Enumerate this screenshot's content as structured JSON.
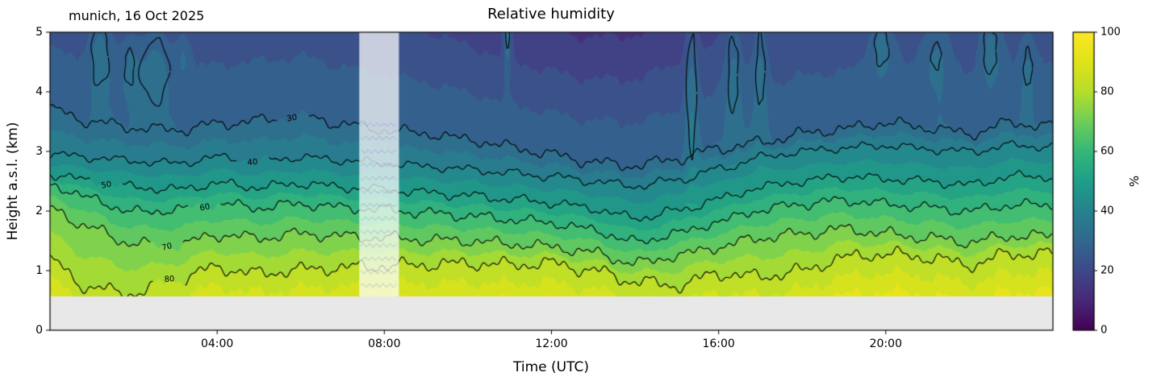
{
  "colors": {
    "background": "#ffffff",
    "no_data": "#e8e8e8",
    "contour_line": "#000000",
    "gap_overlay": "rgba(255,255,255,0.72)"
  },
  "chart_data": {
    "type": "filled_contour",
    "title": "Relative humidity",
    "annotation": "munich, 16 Oct 2025",
    "xlabel": "Time (UTC)",
    "ylabel": "Height a.s.l. (km)",
    "colorbar": {
      "label": "%",
      "min": 0,
      "max": 100,
      "ticks": [
        0,
        20,
        40,
        60,
        80,
        100
      ],
      "colormap": "viridis"
    },
    "x_axis": {
      "min_hours": 0,
      "max_hours": 24,
      "ticks": [
        {
          "t": 4,
          "label": "04:00"
        },
        {
          "t": 8,
          "label": "08:00"
        },
        {
          "t": 12,
          "label": "12:00"
        },
        {
          "t": 16,
          "label": "16:00"
        },
        {
          "t": 20,
          "label": "20:00"
        }
      ]
    },
    "y_axis": {
      "min": 0,
      "max": 5,
      "ticks": [
        0,
        1,
        2,
        3,
        4,
        5
      ]
    },
    "ground_level_km": 0.57,
    "data_gap": {
      "t_start": 7.4,
      "t_end": 8.35
    },
    "contour_levels": [
      {
        "value": 80,
        "label_t": 2.85,
        "label_rot": -4,
        "wiggle_amp": 0.07,
        "phase": 0.7,
        "heights_km": [
          1.15,
          0.7,
          0.62,
          0.85,
          1.05,
          0.95,
          1.02,
          1.05,
          1.08,
          1.1,
          1.12,
          1.1,
          1.12,
          1.0,
          0.82,
          0.75,
          0.95,
          0.9,
          1.0,
          1.22,
          1.28,
          1.22,
          1.1,
          1.28,
          1.28
        ]
      },
      {
        "value": 70,
        "label_t": 2.8,
        "label_rot": -14,
        "wiggle_amp": 0.06,
        "phase": 1.9,
        "heights_km": [
          2.05,
          1.7,
          1.45,
          1.42,
          1.6,
          1.55,
          1.62,
          1.58,
          1.55,
          1.52,
          1.5,
          1.45,
          1.4,
          1.3,
          1.12,
          1.25,
          1.4,
          1.55,
          1.62,
          1.7,
          1.62,
          1.55,
          1.48,
          1.58,
          1.58
        ]
      },
      {
        "value": 60,
        "label_t": 3.7,
        "label_rot": -12,
        "wiggle_amp": 0.055,
        "phase": 3.1,
        "heights_km": [
          2.45,
          2.2,
          1.98,
          2.02,
          2.12,
          2.06,
          2.12,
          2.06,
          2.02,
          1.97,
          1.92,
          1.86,
          1.8,
          1.68,
          1.48,
          1.62,
          1.82,
          2.02,
          2.12,
          2.18,
          2.12,
          2.06,
          2.0,
          2.1,
          2.1
        ]
      },
      {
        "value": 50,
        "label_t": 1.35,
        "label_rot": -10,
        "wiggle_amp": 0.05,
        "phase": 4.3,
        "heights_km": [
          2.62,
          2.5,
          2.4,
          2.36,
          2.46,
          2.4,
          2.46,
          2.4,
          2.36,
          2.31,
          2.26,
          2.2,
          2.14,
          2.04,
          1.88,
          2.0,
          2.2,
          2.4,
          2.5,
          2.58,
          2.54,
          2.5,
          2.44,
          2.58,
          2.58
        ]
      },
      {
        "value": 40,
        "label_t": 4.85,
        "label_rot": -6,
        "wiggle_amp": 0.045,
        "phase": 5.5,
        "heights_km": [
          2.95,
          2.9,
          2.84,
          2.8,
          2.9,
          2.85,
          2.9,
          2.85,
          2.8,
          2.75,
          2.7,
          2.64,
          2.58,
          2.5,
          2.42,
          2.52,
          2.7,
          2.9,
          3.0,
          3.06,
          3.1,
          3.04,
          3.0,
          3.1,
          3.08
        ]
      },
      {
        "value": 30,
        "label_t": 5.8,
        "label_rot": -10,
        "wiggle_amp": 0.06,
        "phase": 0.3,
        "heights_km": [
          3.7,
          3.5,
          3.4,
          3.36,
          3.46,
          3.52,
          3.6,
          3.46,
          3.36,
          3.3,
          3.2,
          3.08,
          2.95,
          2.82,
          2.76,
          2.88,
          3.05,
          3.15,
          3.3,
          3.38,
          3.48,
          3.4,
          3.3,
          3.48,
          3.42
        ]
      }
    ],
    "upper_features": [
      {
        "t": 1.2,
        "h": 4.6,
        "amp": 9,
        "rt": 0.2,
        "rh": 0.5
      },
      {
        "t": 1.9,
        "h": 4.4,
        "amp": 7,
        "rt": 0.15,
        "rh": 0.4
      },
      {
        "t": 2.5,
        "h": 4.35,
        "amp": 8,
        "rt": 0.3,
        "rh": 0.5
      },
      {
        "t": 3.2,
        "h": 4.6,
        "amp": 6.5,
        "rt": 0.12,
        "rh": 0.3
      },
      {
        "t": 10.95,
        "h": 4.95,
        "amp": 14,
        "rt": 0.07,
        "rh": 0.45
      },
      {
        "t": 15.35,
        "h": 4.0,
        "amp": 10,
        "rt": 0.12,
        "rh": 1.1
      },
      {
        "t": 16.35,
        "h": 4.3,
        "amp": 9,
        "rt": 0.18,
        "rh": 0.9
      },
      {
        "t": 17.0,
        "h": 4.35,
        "amp": 8,
        "rt": 0.14,
        "rh": 0.85
      },
      {
        "t": 19.9,
        "h": 4.75,
        "amp": 9,
        "rt": 0.2,
        "rh": 0.4
      },
      {
        "t": 21.2,
        "h": 4.6,
        "amp": 7,
        "rt": 0.25,
        "rh": 0.5
      },
      {
        "t": 22.5,
        "h": 4.7,
        "amp": 9,
        "rt": 0.2,
        "rh": 0.45
      },
      {
        "t": 23.4,
        "h": 4.4,
        "amp": 6,
        "rt": 0.15,
        "rh": 0.5
      }
    ]
  }
}
